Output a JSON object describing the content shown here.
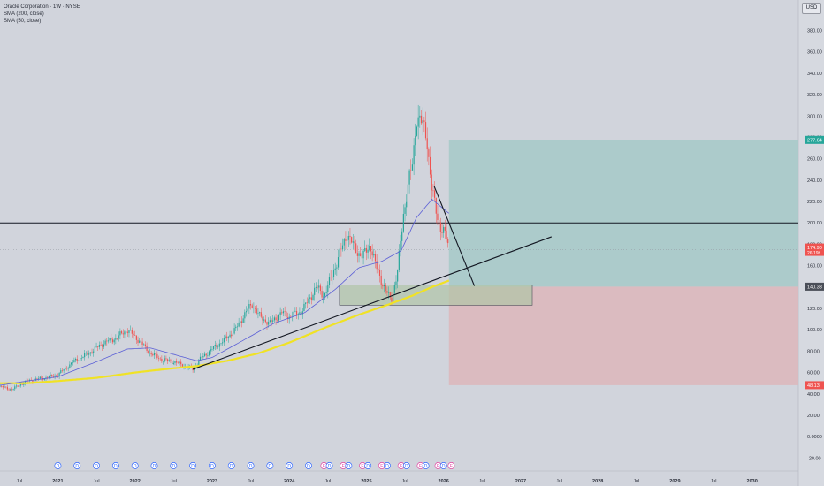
{
  "legend": {
    "symbol": "Oracle Corporation · 1W · NYSE",
    "sma200": "SMA (200, close)",
    "sma50": "SMA (50, close)"
  },
  "currency": "USD",
  "colors": {
    "background": "#d1d4dc",
    "up": "#26a69a",
    "down": "#ef5350",
    "sma50": "#5b5fd6",
    "sma200": "#f0e225",
    "target_zone": "#a7cac9",
    "stop_zone": "#dcb8bd",
    "support_box": "#b0c4a7",
    "trend_line": "#131722"
  },
  "chart_data": {
    "type": "candlestick",
    "title": "Oracle Corporation · 1W · NYSE",
    "ylim": [
      -28,
      392
    ],
    "xlim": [
      2020.25,
      2030.6
    ],
    "y_ticks": [
      "-20.00",
      "0.0000",
      "20.00",
      "40.00",
      "60.00",
      "80.00",
      "100.00",
      "120.00",
      "140.00",
      "160.00",
      "180.00",
      "200.00",
      "220.00",
      "240.00",
      "260.00",
      "280.00",
      "300.00",
      "320.00",
      "340.00",
      "360.00",
      "380.00"
    ],
    "y_tick_values": [
      -20,
      0,
      20,
      40,
      60,
      80,
      100,
      120,
      140,
      160,
      180,
      200,
      220,
      240,
      260,
      280,
      300,
      320,
      340,
      360,
      380
    ],
    "x_ticks": [
      {
        "label": "Jul",
        "x": 2020.5
      },
      {
        "label": "2021",
        "x": 2021.0
      },
      {
        "label": "Jul",
        "x": 2021.5
      },
      {
        "label": "2022",
        "x": 2022.0
      },
      {
        "label": "Jul",
        "x": 2022.5
      },
      {
        "label": "2023",
        "x": 2023.0
      },
      {
        "label": "Jul",
        "x": 2023.5
      },
      {
        "label": "2024",
        "x": 2024.0
      },
      {
        "label": "Jul",
        "x": 2024.5
      },
      {
        "label": "2025",
        "x": 2025.0
      },
      {
        "label": "Jul",
        "x": 2025.5
      },
      {
        "label": "2026",
        "x": 2026.0
      },
      {
        "label": "Jul",
        "x": 2026.5
      },
      {
        "label": "2027",
        "x": 2027.0
      },
      {
        "label": "Jul",
        "x": 2027.5
      },
      {
        "label": "2028",
        "x": 2028.0
      },
      {
        "label": "Jul",
        "x": 2028.5
      },
      {
        "label": "2029",
        "x": 2029.0
      },
      {
        "label": "Jul",
        "x": 2029.5
      },
      {
        "label": "2030",
        "x": 2030.0
      }
    ],
    "price_anchors": [
      [
        2020.25,
        47
      ],
      [
        2020.4,
        44
      ],
      [
        2020.6,
        52
      ],
      [
        2020.9,
        56
      ],
      [
        2021.0,
        58
      ],
      [
        2021.2,
        70
      ],
      [
        2021.4,
        78
      ],
      [
        2021.6,
        88
      ],
      [
        2021.75,
        92
      ],
      [
        2021.9,
        100
      ],
      [
        2022.05,
        90
      ],
      [
        2022.2,
        78
      ],
      [
        2022.35,
        72
      ],
      [
        2022.5,
        70
      ],
      [
        2022.65,
        66
      ],
      [
        2022.75,
        63
      ],
      [
        2022.85,
        73
      ],
      [
        2023.0,
        82
      ],
      [
        2023.15,
        90
      ],
      [
        2023.3,
        100
      ],
      [
        2023.45,
        118
      ],
      [
        2023.52,
        124
      ],
      [
        2023.62,
        112
      ],
      [
        2023.75,
        106
      ],
      [
        2023.9,
        116
      ],
      [
        2024.0,
        112
      ],
      [
        2024.15,
        117
      ],
      [
        2024.22,
        124
      ],
      [
        2024.35,
        140
      ],
      [
        2024.45,
        132
      ],
      [
        2024.55,
        150
      ],
      [
        2024.65,
        170
      ],
      [
        2024.75,
        190
      ],
      [
        2024.85,
        176
      ],
      [
        2024.95,
        168
      ],
      [
        2025.05,
        180
      ],
      [
        2025.12,
        160
      ],
      [
        2025.25,
        136
      ],
      [
        2025.32,
        128
      ],
      [
        2025.4,
        152
      ],
      [
        2025.48,
        208
      ],
      [
        2025.55,
        240
      ],
      [
        2025.6,
        255
      ],
      [
        2025.65,
        300
      ],
      [
        2025.7,
        296
      ],
      [
        2025.78,
        282
      ],
      [
        2025.85,
        230
      ],
      [
        2025.92,
        205
      ],
      [
        2025.97,
        195
      ],
      [
        2026.03,
        188
      ],
      [
        2026.07,
        174.9
      ]
    ],
    "sma50_anchors": [
      [
        2020.25,
        48
      ],
      [
        2020.6,
        52
      ],
      [
        2021.0,
        56
      ],
      [
        2021.5,
        70
      ],
      [
        2021.9,
        82
      ],
      [
        2022.2,
        83
      ],
      [
        2022.55,
        76
      ],
      [
        2022.8,
        71
      ],
      [
        2023.0,
        74
      ],
      [
        2023.4,
        90
      ],
      [
        2023.8,
        106
      ],
      [
        2024.2,
        116
      ],
      [
        2024.6,
        138
      ],
      [
        2024.9,
        158
      ],
      [
        2025.2,
        164
      ],
      [
        2025.45,
        174
      ],
      [
        2025.65,
        205
      ],
      [
        2025.85,
        222
      ],
      [
        2026.07,
        209
      ]
    ],
    "sma200_anchors": [
      [
        2020.25,
        50
      ],
      [
        2020.6,
        50
      ],
      [
        2021.0,
        52
      ],
      [
        2021.5,
        55
      ],
      [
        2022.0,
        60
      ],
      [
        2022.5,
        64
      ],
      [
        2022.8,
        66
      ],
      [
        2023.2,
        71
      ],
      [
        2023.6,
        78
      ],
      [
        2024.0,
        88
      ],
      [
        2024.5,
        103
      ],
      [
        2024.9,
        114
      ],
      [
        2025.3,
        124
      ],
      [
        2025.6,
        132
      ],
      [
        2025.85,
        140
      ],
      [
        2026.07,
        146
      ]
    ],
    "annotations": {
      "resistance_level": 200,
      "trend_line": [
        [
          2022.75,
          63
        ],
        [
          2027.4,
          187
        ]
      ],
      "drop_line": [
        [
          2025.88,
          234
        ],
        [
          2026.4,
          141
        ]
      ],
      "support_box": {
        "x": [
          2024.65,
          2027.15
        ],
        "y": [
          123,
          142
        ]
      },
      "target_zone": {
        "x": [
          2026.07,
          2030.6
        ],
        "y": [
          140.33,
          277.64
        ]
      },
      "stop_zone": {
        "x": [
          2026.07,
          2030.6
        ],
        "y": [
          48.13,
          140.33
        ]
      }
    },
    "price_labels": [
      {
        "text": "277.64",
        "value": 277.64,
        "color": "#26a69a"
      },
      {
        "text": "140.33",
        "value": 140.33,
        "color": "#4a4e58"
      },
      {
        "text": "48.13",
        "value": 48.13,
        "color": "#ef5350"
      }
    ],
    "last_price": {
      "value": 174.9,
      "line1": "174.90",
      "line2": "26:19h",
      "color": "#ef5350"
    },
    "event_markers": [
      {
        "x": 2021.0,
        "kind": "D"
      },
      {
        "x": 2021.25,
        "kind": "D"
      },
      {
        "x": 2021.5,
        "kind": "D"
      },
      {
        "x": 2021.75,
        "kind": "D"
      },
      {
        "x": 2022.0,
        "kind": "D"
      },
      {
        "x": 2022.25,
        "kind": "D"
      },
      {
        "x": 2022.5,
        "kind": "D"
      },
      {
        "x": 2022.75,
        "kind": "D"
      },
      {
        "x": 2023.0,
        "kind": "D"
      },
      {
        "x": 2023.25,
        "kind": "D"
      },
      {
        "x": 2023.5,
        "kind": "D"
      },
      {
        "x": 2023.75,
        "kind": "D"
      },
      {
        "x": 2024.0,
        "kind": "D"
      },
      {
        "x": 2024.25,
        "kind": "D"
      },
      {
        "x": 2024.45,
        "kind": "E"
      },
      {
        "x": 2024.52,
        "kind": "D"
      },
      {
        "x": 2024.7,
        "kind": "E"
      },
      {
        "x": 2024.77,
        "kind": "D"
      },
      {
        "x": 2024.95,
        "kind": "E"
      },
      {
        "x": 2025.02,
        "kind": "D"
      },
      {
        "x": 2025.2,
        "kind": "E"
      },
      {
        "x": 2025.27,
        "kind": "D"
      },
      {
        "x": 2025.45,
        "kind": "E"
      },
      {
        "x": 2025.52,
        "kind": "D"
      },
      {
        "x": 2025.7,
        "kind": "E"
      },
      {
        "x": 2025.77,
        "kind": "D"
      },
      {
        "x": 2025.93,
        "kind": "E"
      },
      {
        "x": 2026.0,
        "kind": "D"
      },
      {
        "x": 2026.1,
        "kind": "E"
      }
    ]
  }
}
